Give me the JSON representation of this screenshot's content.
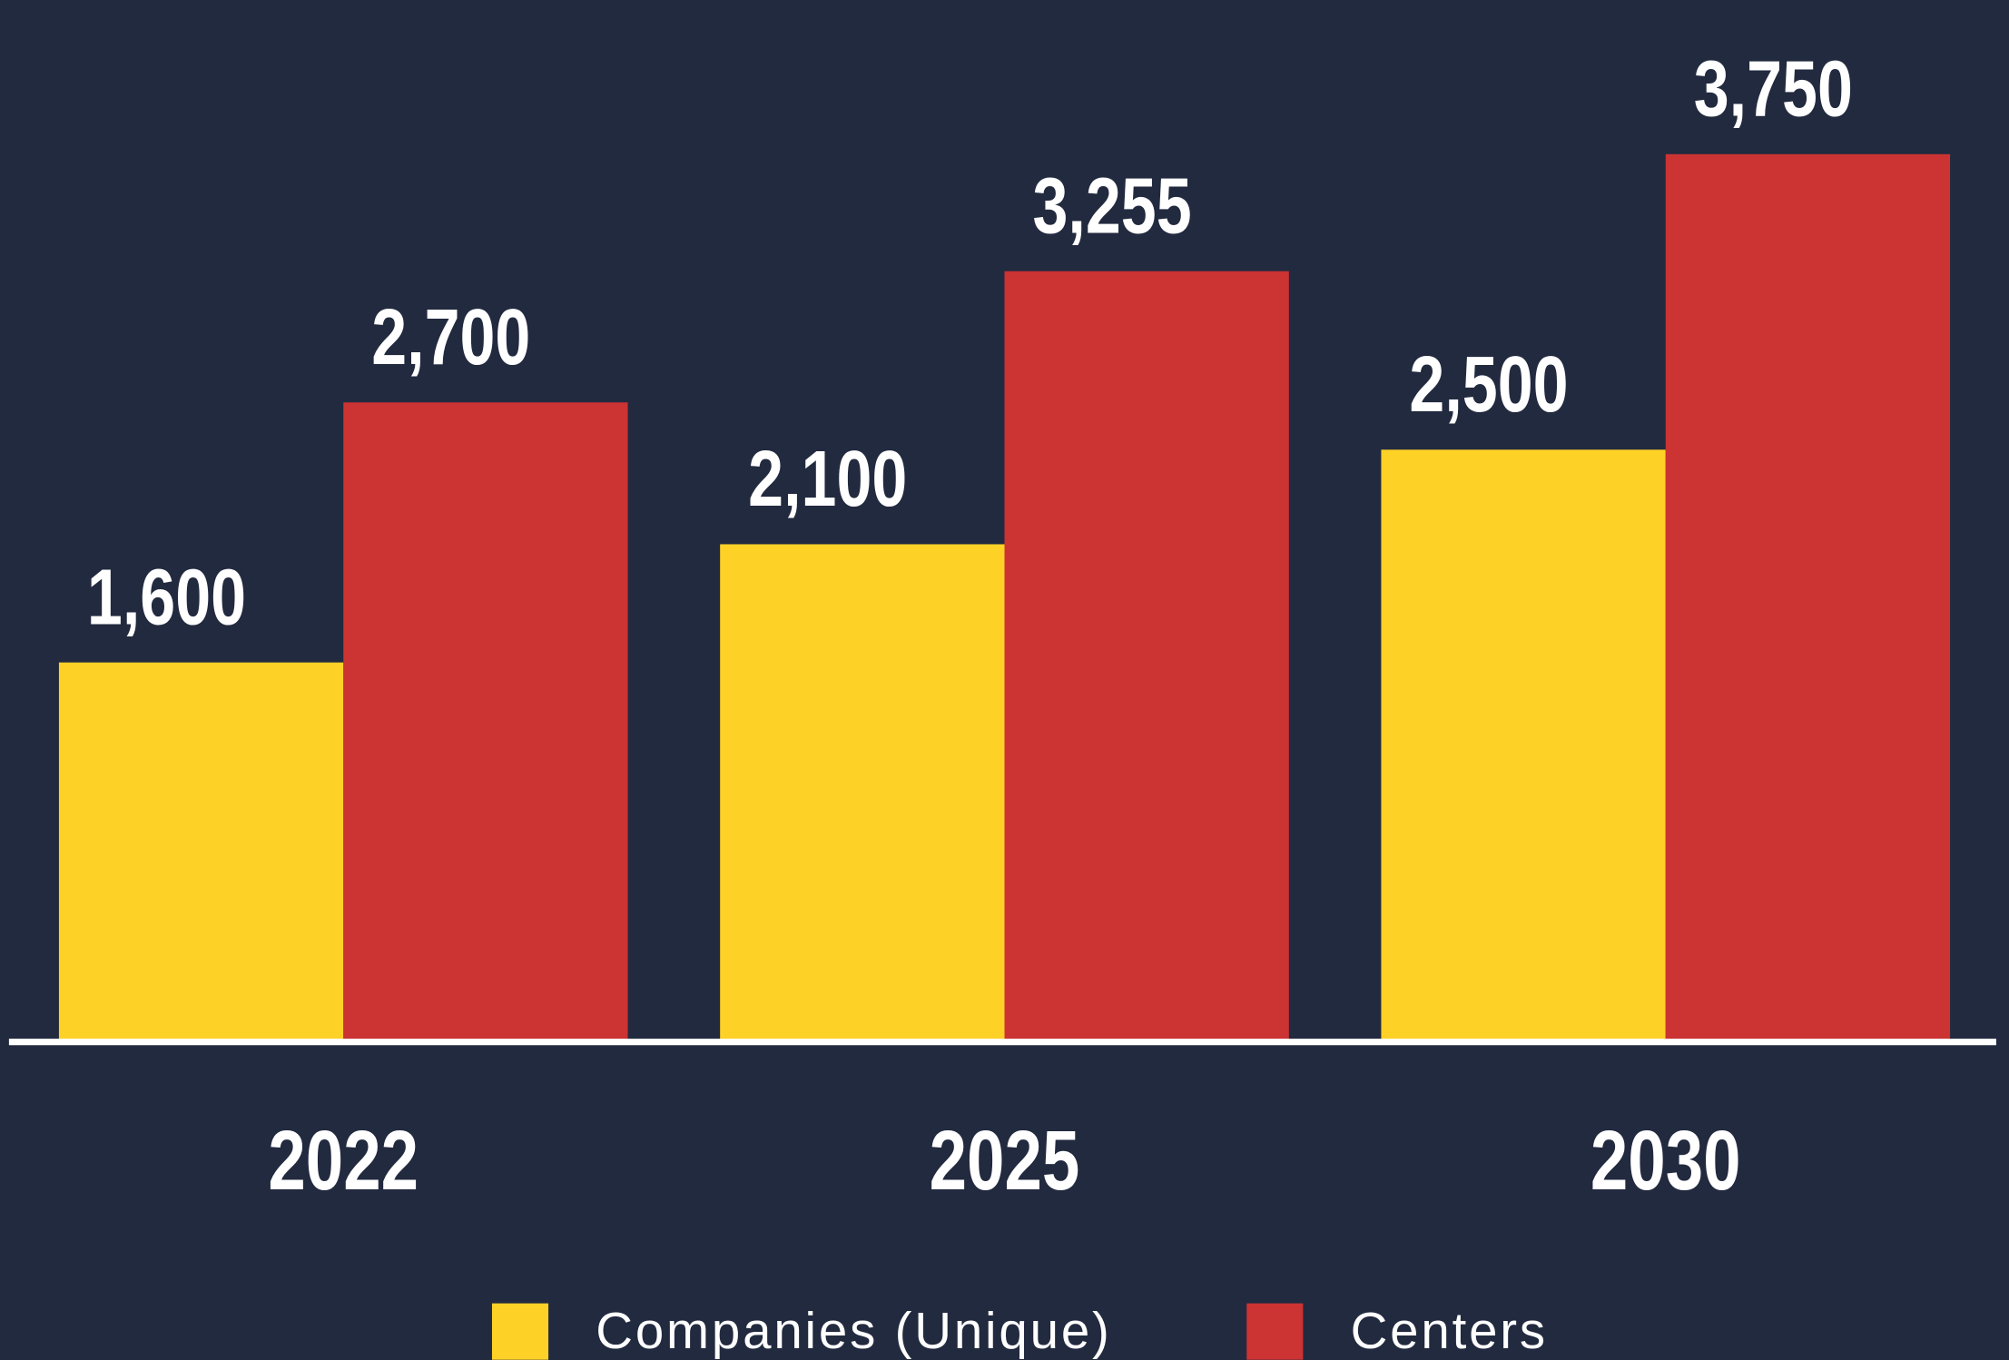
{
  "chart_data": {
    "type": "bar",
    "categories": [
      "2022",
      "2025",
      "2030"
    ],
    "series": [
      {
        "name": "Companies (Unique)",
        "color": "#fed127",
        "values": [
          1600,
          2100,
          2500
        ],
        "value_labels": [
          "1,600",
          "2,100",
          "2,500"
        ]
      },
      {
        "name": "Centers",
        "color": "#cc3333",
        "values": [
          2700,
          3255,
          3750
        ],
        "value_labels": [
          "2,700",
          "3,255",
          "3,750"
        ]
      }
    ],
    "ylim": [
      0,
      4000
    ]
  }
}
